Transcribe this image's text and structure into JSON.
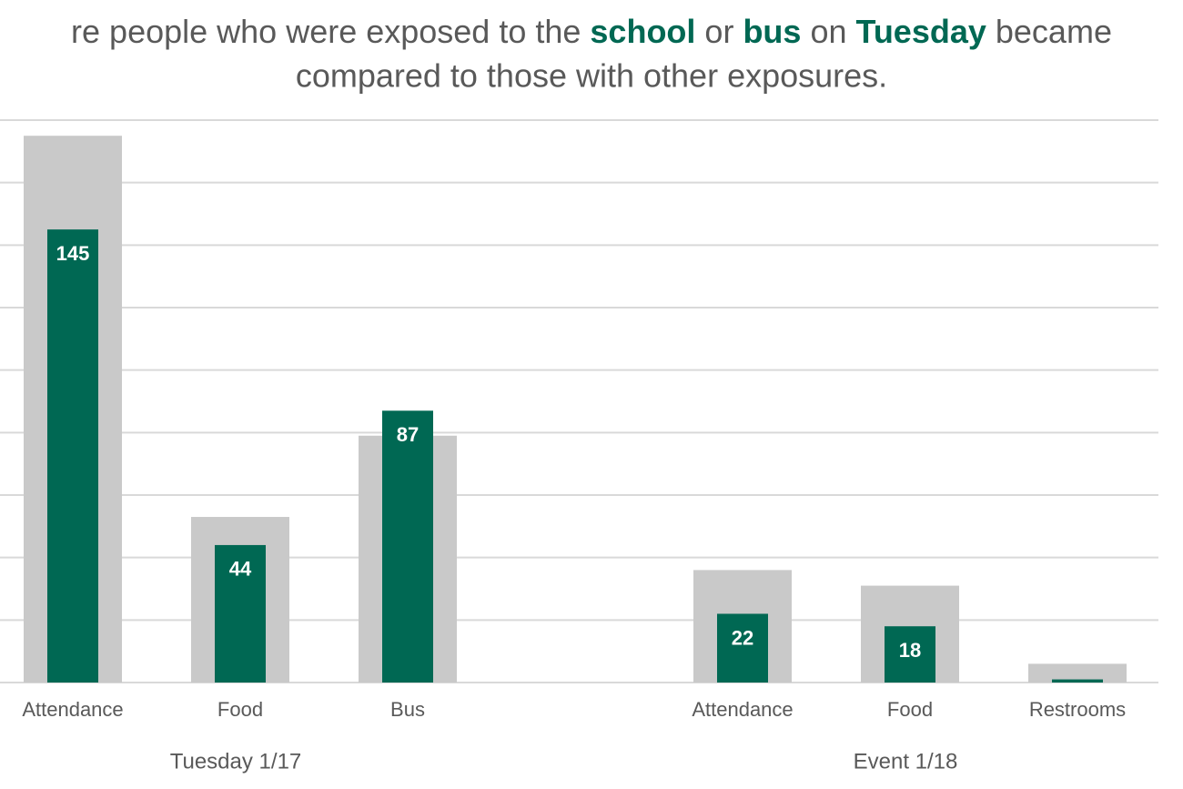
{
  "chart_data": {
    "type": "bar",
    "title": {
      "line1": [
        {
          "text": "re people who were exposed to the ",
          "bold": false
        },
        {
          "text": "school",
          "bold": true
        },
        {
          "text": " or ",
          "bold": false
        },
        {
          "text": "bus",
          "bold": true
        },
        {
          "text": " on ",
          "bold": false
        },
        {
          "text": "Tuesday",
          "bold": true
        },
        {
          "text": " became",
          "bold": false
        }
      ],
      "line2": "compared to those with other exposures.",
      "highlight_color": "#006853"
    },
    "categories": [
      "Attendance",
      "Food",
      "Bus",
      null,
      "Attendance",
      "Food",
      "Restrooms"
    ],
    "groups": [
      {
        "label": "Tuesday 1/17",
        "start": 0,
        "end": 2
      },
      {
        "label": "Event 1/18",
        "start": 4,
        "end": 6
      }
    ],
    "series": [
      {
        "color": "#c9c9c9",
        "values": [
          175,
          53,
          79,
          null,
          36,
          31,
          6
        ]
      },
      {
        "color": "#006853",
        "values": [
          145,
          44,
          87,
          null,
          22,
          18,
          1
        ],
        "value_labels": [
          "145",
          "44",
          "87",
          null,
          "22",
          "18",
          null
        ]
      }
    ],
    "ylim": [
      0,
      180
    ],
    "yticks": [
      0,
      20,
      40,
      60,
      80,
      100,
      120,
      140,
      160,
      180
    ],
    "grid": true
  }
}
